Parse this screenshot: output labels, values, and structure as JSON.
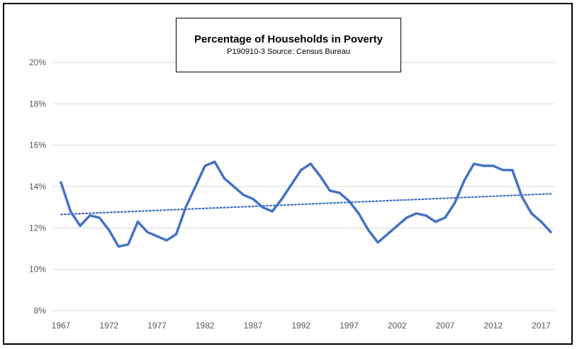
{
  "chart_data": {
    "type": "line",
    "title": "Percentage of Households in Poverty",
    "subtitle": "P190910-3 Source: Census Bureau",
    "xlabel": "",
    "ylabel": "",
    "x_tick_labels": [
      "1967",
      "1972",
      "1977",
      "1982",
      "1987",
      "1992",
      "1997",
      "2002",
      "2007",
      "2012",
      "2017"
    ],
    "y_tick_labels": [
      "8%",
      "10%",
      "12%",
      "14%",
      "16%",
      "18%",
      "20%"
    ],
    "y_ticks": [
      8,
      10,
      12,
      14,
      16,
      18,
      20
    ],
    "ylim": [
      8,
      20
    ],
    "xlim": [
      1967,
      2018
    ],
    "grid": true,
    "legend": "none",
    "series": [
      {
        "x": [
          1967,
          1968,
          1969,
          1970,
          1971,
          1972,
          1973,
          1974,
          1975,
          1976,
          1977,
          1978,
          1979,
          1980,
          1981,
          1982,
          1983,
          1984,
          1985,
          1986,
          1987,
          1988,
          1989,
          1990,
          1991,
          1992,
          1993,
          1994,
          1995,
          1996,
          1997,
          1998,
          1999,
          2000,
          2001,
          2002,
          2003,
          2004,
          2005,
          2006,
          2007,
          2008,
          2009,
          2010,
          2011,
          2012,
          2013,
          2014,
          2015,
          2016,
          2017,
          2018
        ],
        "values": [
          14.2,
          12.8,
          12.1,
          12.6,
          12.5,
          11.9,
          11.1,
          11.2,
          12.3,
          11.8,
          11.6,
          11.4,
          11.7,
          13.0,
          14.0,
          15.0,
          15.2,
          14.4,
          14.0,
          13.6,
          13.4,
          13.0,
          12.8,
          13.4,
          14.1,
          14.8,
          15.1,
          14.5,
          13.8,
          13.7,
          13.3,
          12.7,
          11.9,
          11.3,
          11.7,
          12.1,
          12.5,
          12.7,
          12.6,
          12.3,
          12.5,
          13.2,
          14.3,
          15.1,
          15.0,
          15.0,
          14.8,
          14.8,
          13.5,
          12.7,
          12.3,
          11.8
        ],
        "color": "#4472C4"
      }
    ],
    "trendline": {
      "style": "dotted",
      "color": "#4472C4",
      "start": {
        "x": 1967,
        "y": 12.65
      },
      "end": {
        "x": 2018,
        "y": 13.65
      }
    }
  }
}
